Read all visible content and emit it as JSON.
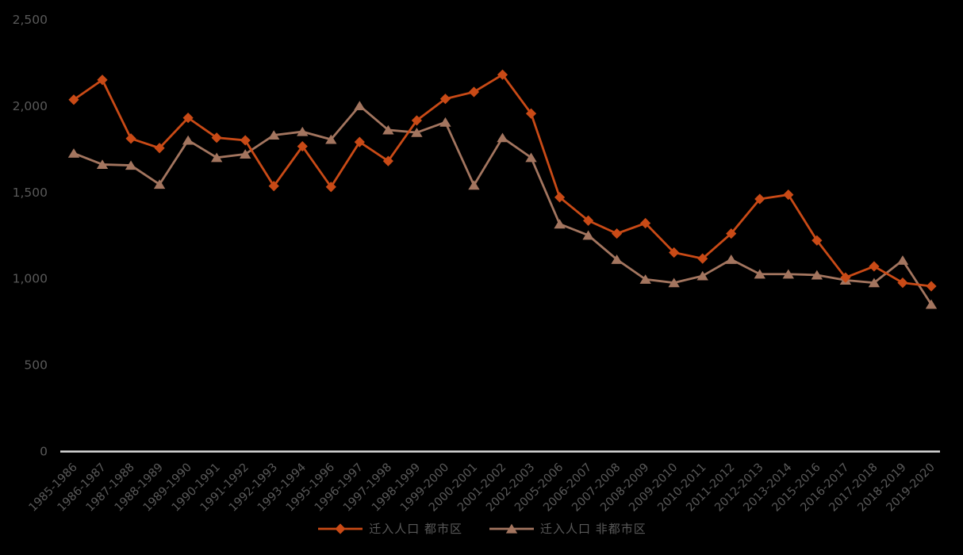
{
  "chart_data": {
    "type": "line",
    "title": "",
    "xlabel": "",
    "ylabel": "",
    "categories": [
      "1985-1986",
      "1986-1987",
      "1987-1988",
      "1988-1989",
      "1989-1990",
      "1990-1991",
      "1991-1992",
      "1992-1993",
      "1993-1994",
      "1995-1996",
      "1996-1997",
      "1997-1998",
      "1998-1999",
      "1999-2000",
      "2000-2001",
      "2001-2002",
      "2002-2003",
      "2005-2006",
      "2006-2007",
      "2007-2008",
      "2008-2009",
      "2009-2010",
      "2010-2011",
      "2011-2012",
      "2012-2013",
      "2013-2014",
      "2015-2016",
      "2016-2017",
      "2017-2018",
      "2018-2019",
      "2019-2020"
    ],
    "series": [
      {
        "name": "迁入人口 都市区",
        "marker": "diamond",
        "color": "#C94A16",
        "values": [
          2035,
          2150,
          1810,
          1755,
          1930,
          1815,
          1800,
          1535,
          1765,
          1530,
          1790,
          1680,
          1915,
          2040,
          2080,
          2180,
          1955,
          1470,
          1335,
          1260,
          1320,
          1150,
          1115,
          1260,
          1460,
          1485,
          1220,
          1005,
          1070,
          975,
          955
        ]
      },
      {
        "name": "迁入人口 非都市区",
        "marker": "triangle",
        "color": "#A3755F",
        "values": [
          1725,
          1660,
          1655,
          1545,
          1800,
          1700,
          1720,
          1830,
          1850,
          1805,
          2000,
          1860,
          1845,
          1905,
          1540,
          1815,
          1700,
          1315,
          1250,
          1110,
          995,
          975,
          1015,
          1110,
          1025,
          1025,
          1020,
          990,
          975,
          1105,
          850
        ]
      }
    ],
    "ylim": [
      0,
      2500
    ],
    "yticks": [
      0,
      500,
      1000,
      1500,
      2000,
      2500
    ],
    "ytick_labels": [
      "0",
      "500",
      "1,000",
      "1,500",
      "2,000",
      "2,500"
    ],
    "grid": false,
    "legend_position": "bottom",
    "colors": {
      "background": "#000000",
      "axis_line": "#DBDBDB",
      "tick_label": "#595959",
      "legend_text": "#595959"
    }
  }
}
